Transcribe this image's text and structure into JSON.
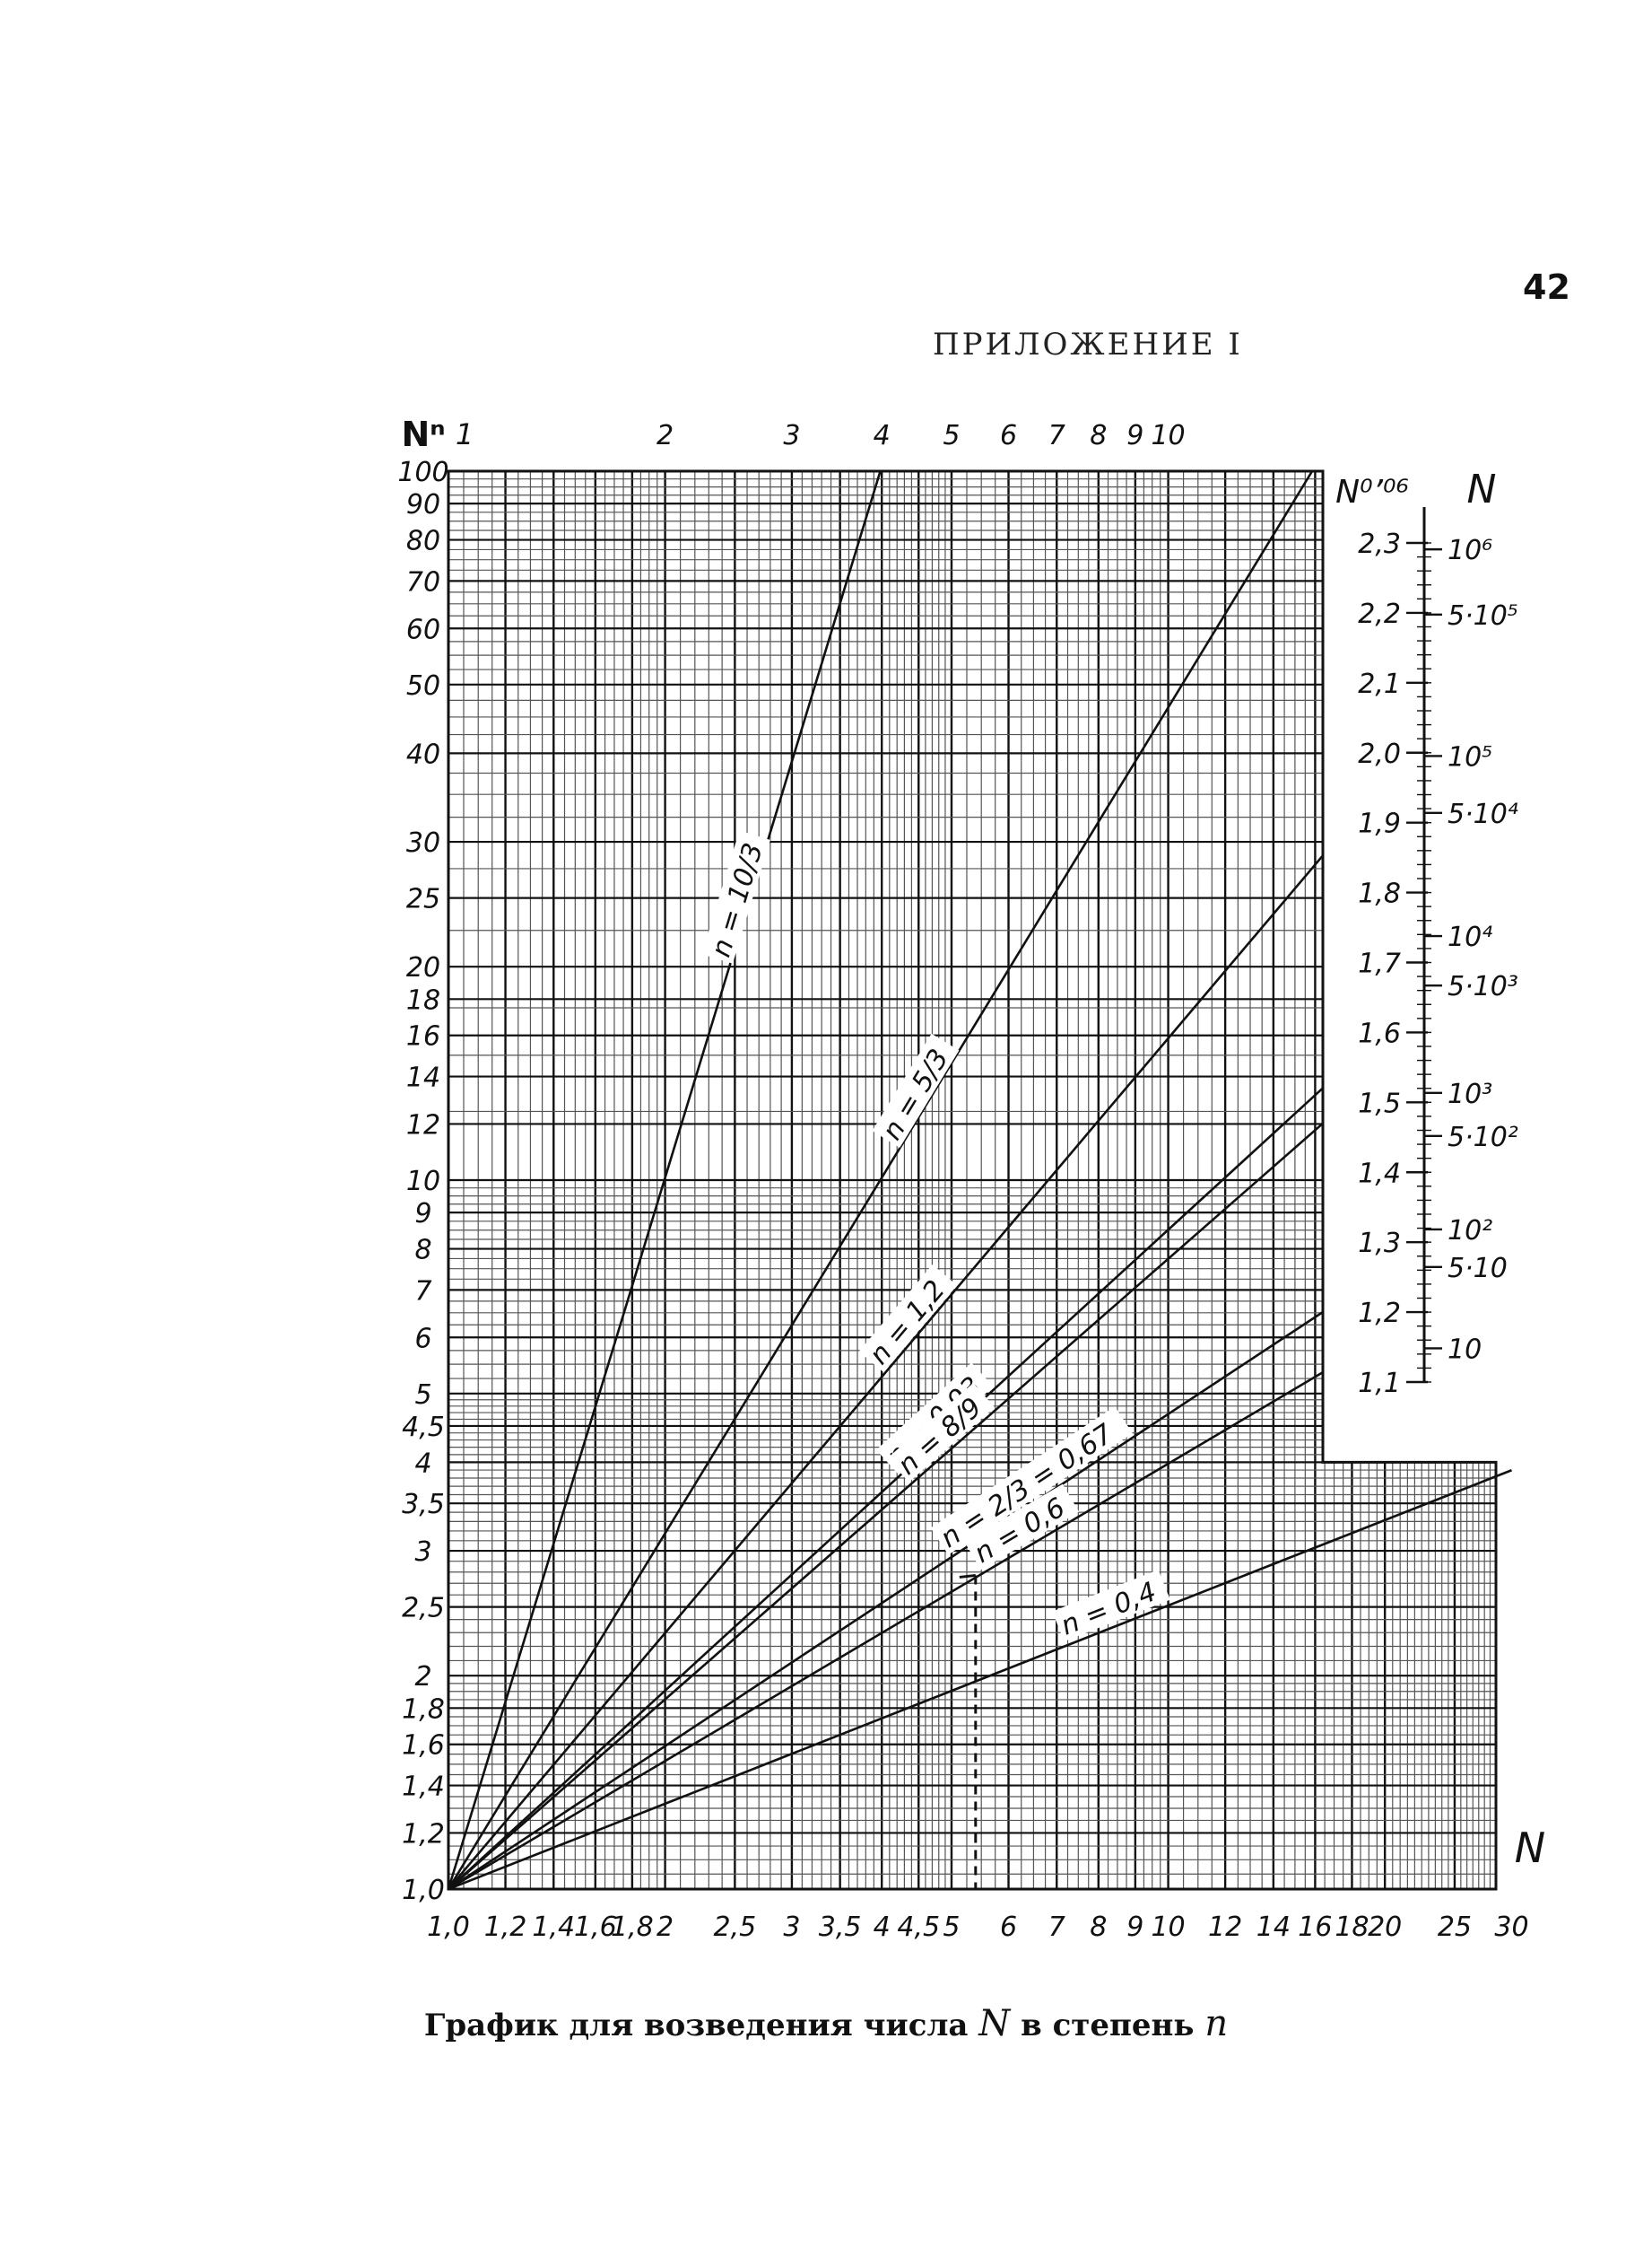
{
  "page_number": "42",
  "appendix_title": "ПРИЛОЖЕНИЕ I",
  "caption": {
    "before": "График для возведения числа",
    "n_var": "N",
    "middle": "в степень",
    "pow_var": "n"
  },
  "chart_data": {
    "type": "line",
    "title": "",
    "x_scale": "log",
    "y_scale": "log",
    "xlabel": "N",
    "ylabel": "Nⁿ",
    "xlim": [
      1.0,
      30
    ],
    "ylim": [
      1.0,
      100
    ],
    "grid": true,
    "x_ticks": [
      "1,0",
      "1,2",
      "1,4",
      "1,6",
      "1,8",
      "2",
      "2,5",
      "3",
      "3,5",
      "4",
      "4,5",
      "5",
      "6",
      "7",
      "8",
      "9",
      "10",
      "12",
      "14",
      "16",
      "18",
      "20",
      "25",
      "30"
    ],
    "x_tick_values": [
      1.0,
      1.2,
      1.4,
      1.6,
      1.8,
      2,
      2.5,
      3,
      3.5,
      4,
      4.5,
      5,
      6,
      7,
      8,
      9,
      10,
      12,
      14,
      16,
      18,
      20,
      25,
      30
    ],
    "y_ticks": [
      "1,0",
      "1,2",
      "1,4",
      "1,6",
      "1,8",
      "2",
      "2,5",
      "3",
      "3,5",
      "4",
      "4,5",
      "5",
      "6",
      "7",
      "8",
      "9",
      "10",
      "12",
      "14",
      "16",
      "18",
      "20",
      "25",
      "30",
      "40",
      "50",
      "60",
      "70",
      "80",
      "90",
      "100"
    ],
    "y_tick_values": [
      1.0,
      1.2,
      1.4,
      1.6,
      1.8,
      2,
      2.5,
      3,
      3.5,
      4,
      4.5,
      5,
      6,
      7,
      8,
      9,
      10,
      12,
      14,
      16,
      18,
      20,
      25,
      30,
      40,
      50,
      60,
      70,
      80,
      90,
      100
    ],
    "top_ticks": [
      "2",
      "3",
      "4",
      "5",
      "6",
      "7",
      "8",
      "9",
      "10"
    ],
    "top_tick_values": [
      2,
      3,
      4,
      5,
      6,
      7,
      8,
      9,
      10
    ],
    "top_label": "1",
    "series": [
      {
        "name": "n = 10/3",
        "n": 3.3333,
        "x_end": 3.98
      },
      {
        "name": "n = 5/3",
        "n": 1.6667,
        "x_end": 16.0
      },
      {
        "name": "n = 1,2",
        "n": 1.2,
        "x_end": 16.4
      },
      {
        "name": "n = 0,93",
        "n": 0.93,
        "x_end": 16.4
      },
      {
        "name": "n = 8/9",
        "n": 0.889,
        "x_end": 16.4
      },
      {
        "name": "n = 2/3 = 0,67",
        "n": 0.67,
        "x_end": 16.4
      },
      {
        "name": "n = 0,6",
        "n": 0.6,
        "x_end": 16.4
      },
      {
        "name": "n = 0,4",
        "n": 0.4,
        "x_end": 30
      }
    ],
    "annotation_example": {
      "x": 5.4,
      "y_n06": 2.77,
      "y_n04": 1.96
    },
    "right_scale": {
      "title": "N⁰’⁰⁶",
      "n_label": "N",
      "ticks": [
        "1,1",
        "1,2",
        "1,3",
        "1,4",
        "1,5",
        "1,6",
        "1,7",
        "1,8",
        "1,9",
        "2,0",
        "2,1",
        "2,2",
        "2,3"
      ],
      "tick_values": [
        1.1,
        1.2,
        1.3,
        1.4,
        1.5,
        1.6,
        1.7,
        1.8,
        1.9,
        2.0,
        2.1,
        2.2,
        2.3
      ],
      "n_ticks": [
        "10",
        "5·10",
        "10²",
        "5·10²",
        "10³",
        "5·10³",
        "10⁴",
        "5·10⁴",
        "10⁵",
        "5·10⁵",
        "10⁶"
      ],
      "n_tick_values": [
        10,
        50,
        100,
        500,
        1000,
        5000,
        10000,
        50000,
        100000,
        500000,
        1000000
      ]
    }
  }
}
